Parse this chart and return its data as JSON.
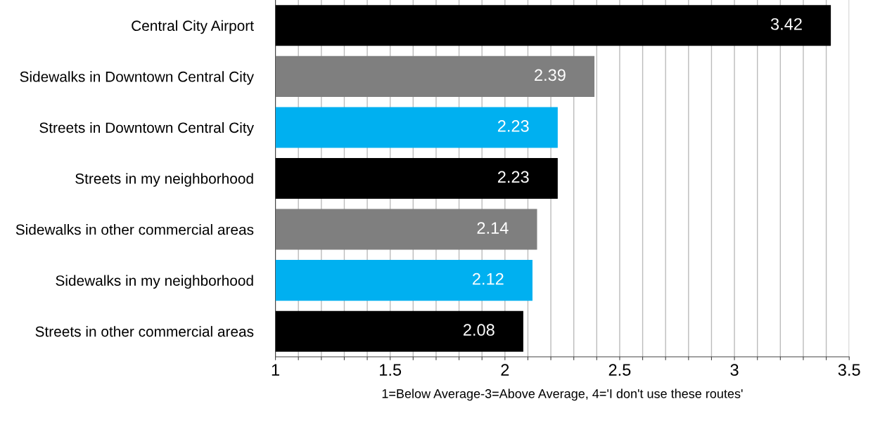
{
  "chart_data": {
    "type": "bar",
    "orientation": "horizontal",
    "categories": [
      "Central City Airport",
      "Sidewalks in Downtown Central City",
      "Streets in Downtown Central City",
      "Streets in my neighborhood",
      "Sidewalks in other commercial areas",
      "Sidewalks in my neighborhood",
      "Streets in other commercial areas"
    ],
    "values": [
      3.42,
      2.39,
      2.23,
      2.23,
      2.14,
      2.12,
      2.08
    ],
    "colors": [
      "#000000",
      "#7f7f7f",
      "#00b0f0",
      "#000000",
      "#7f7f7f",
      "#00b0f0",
      "#000000"
    ],
    "data_labels": true,
    "xlabel": "1=Below Average-3=Above Average, 4='I don't use these routes'",
    "xlim": [
      1,
      3.5
    ],
    "xticks": [
      1,
      {
        "value": 1.1,
        "label": null
      },
      {
        "value": 1.2,
        "label": null
      },
      {
        "value": 1.3,
        "label": null
      },
      {
        "value": 1.4,
        "label": null
      },
      1.5,
      {
        "value": 1.6,
        "label": null
      },
      {
        "value": 1.7,
        "label": null
      },
      {
        "value": 1.8,
        "label": null
      },
      {
        "value": 1.9,
        "label": null
      },
      2,
      {
        "value": 2.1,
        "label": null
      },
      {
        "value": 2.2,
        "label": null
      },
      {
        "value": 2.3,
        "label": null
      },
      {
        "value": 2.4,
        "label": null
      },
      2.5,
      {
        "value": 2.6,
        "label": null
      },
      {
        "value": 2.7,
        "label": null
      },
      {
        "value": 2.8,
        "label": null
      },
      {
        "value": 2.9,
        "label": null
      },
      3,
      {
        "value": 3.1,
        "label": null
      },
      {
        "value": 3.2,
        "label": null
      },
      {
        "value": 3.3,
        "label": null
      },
      {
        "value": 3.4,
        "label": null
      },
      3.5
    ],
    "grid": "x"
  }
}
